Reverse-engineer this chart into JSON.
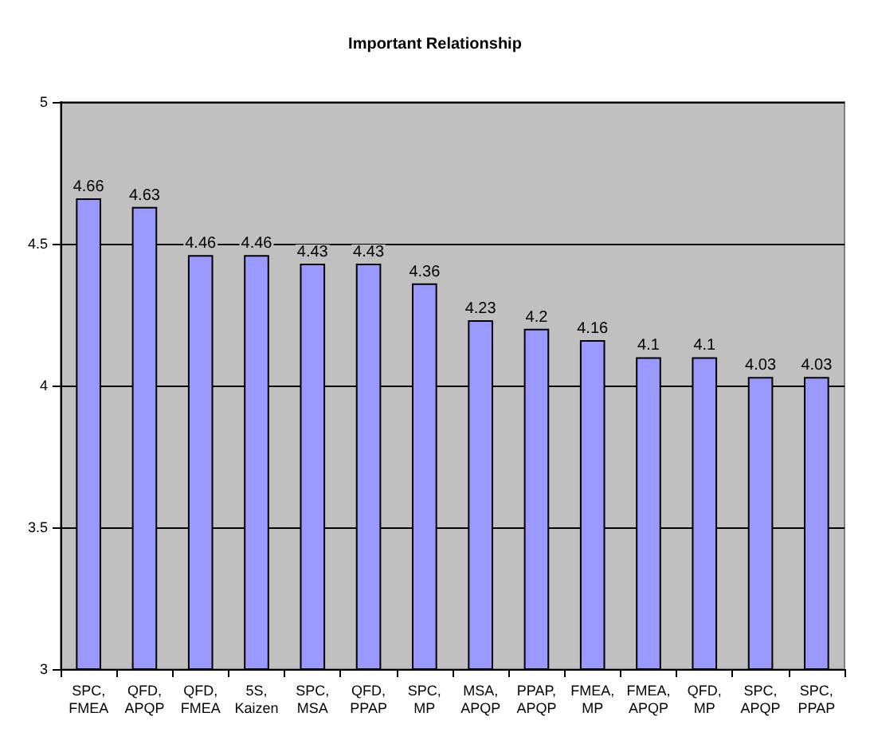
{
  "chart_data": {
    "type": "bar",
    "title": "Important Relationship",
    "categories": [
      "SPC,\nFMEA",
      "QFD,\nAPQP",
      "QFD,\nFMEA",
      "5S,\nKaizen",
      "SPC,\nMSA",
      "QFD,\nPPAP",
      "SPC,\nMP",
      "MSA,\nAPQP",
      "PPAP,\nAPQP",
      "FMEA,\nMP",
      "FMEA,\nAPQP",
      "QFD,\nMP",
      "SPC,\nAPQP",
      "SPC,\nPPAP"
    ],
    "values": [
      4.66,
      4.63,
      4.46,
      4.46,
      4.43,
      4.43,
      4.36,
      4.23,
      4.2,
      4.16,
      4.1,
      4.1,
      4.03,
      4.03
    ],
    "color": "#9999ff",
    "ylim": [
      3,
      5
    ],
    "yticks": [
      3,
      3.5,
      4,
      4.5,
      5
    ],
    "grid": "y",
    "data_labels": true
  }
}
